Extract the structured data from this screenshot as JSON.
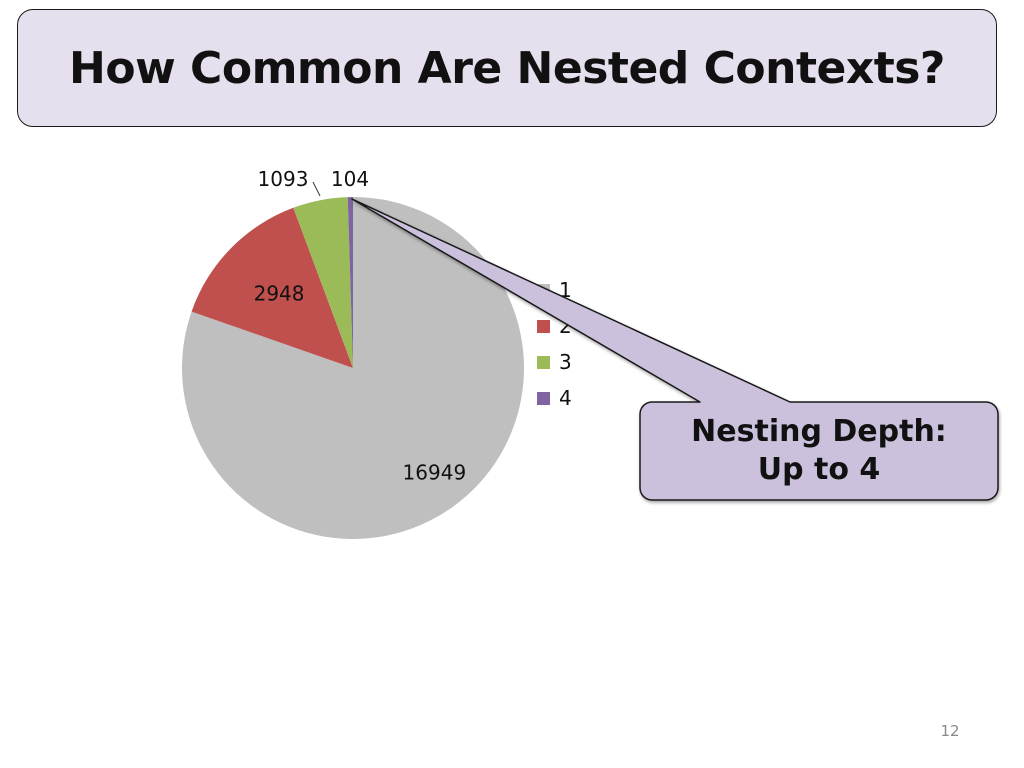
{
  "title": "How Common Are Nested Contexts?",
  "callout": {
    "line1": "Nesting Depth:",
    "line2": "Up to 4"
  },
  "slide_number": "12",
  "chart_data": {
    "type": "pie",
    "categories": [
      "1",
      "2",
      "3",
      "4"
    ],
    "values": [
      16949,
      2948,
      1093,
      104
    ],
    "colors": [
      "#bfbfbf",
      "#c0504d",
      "#9bbb59",
      "#8064a2"
    ],
    "legend_position": "right",
    "title": ""
  }
}
